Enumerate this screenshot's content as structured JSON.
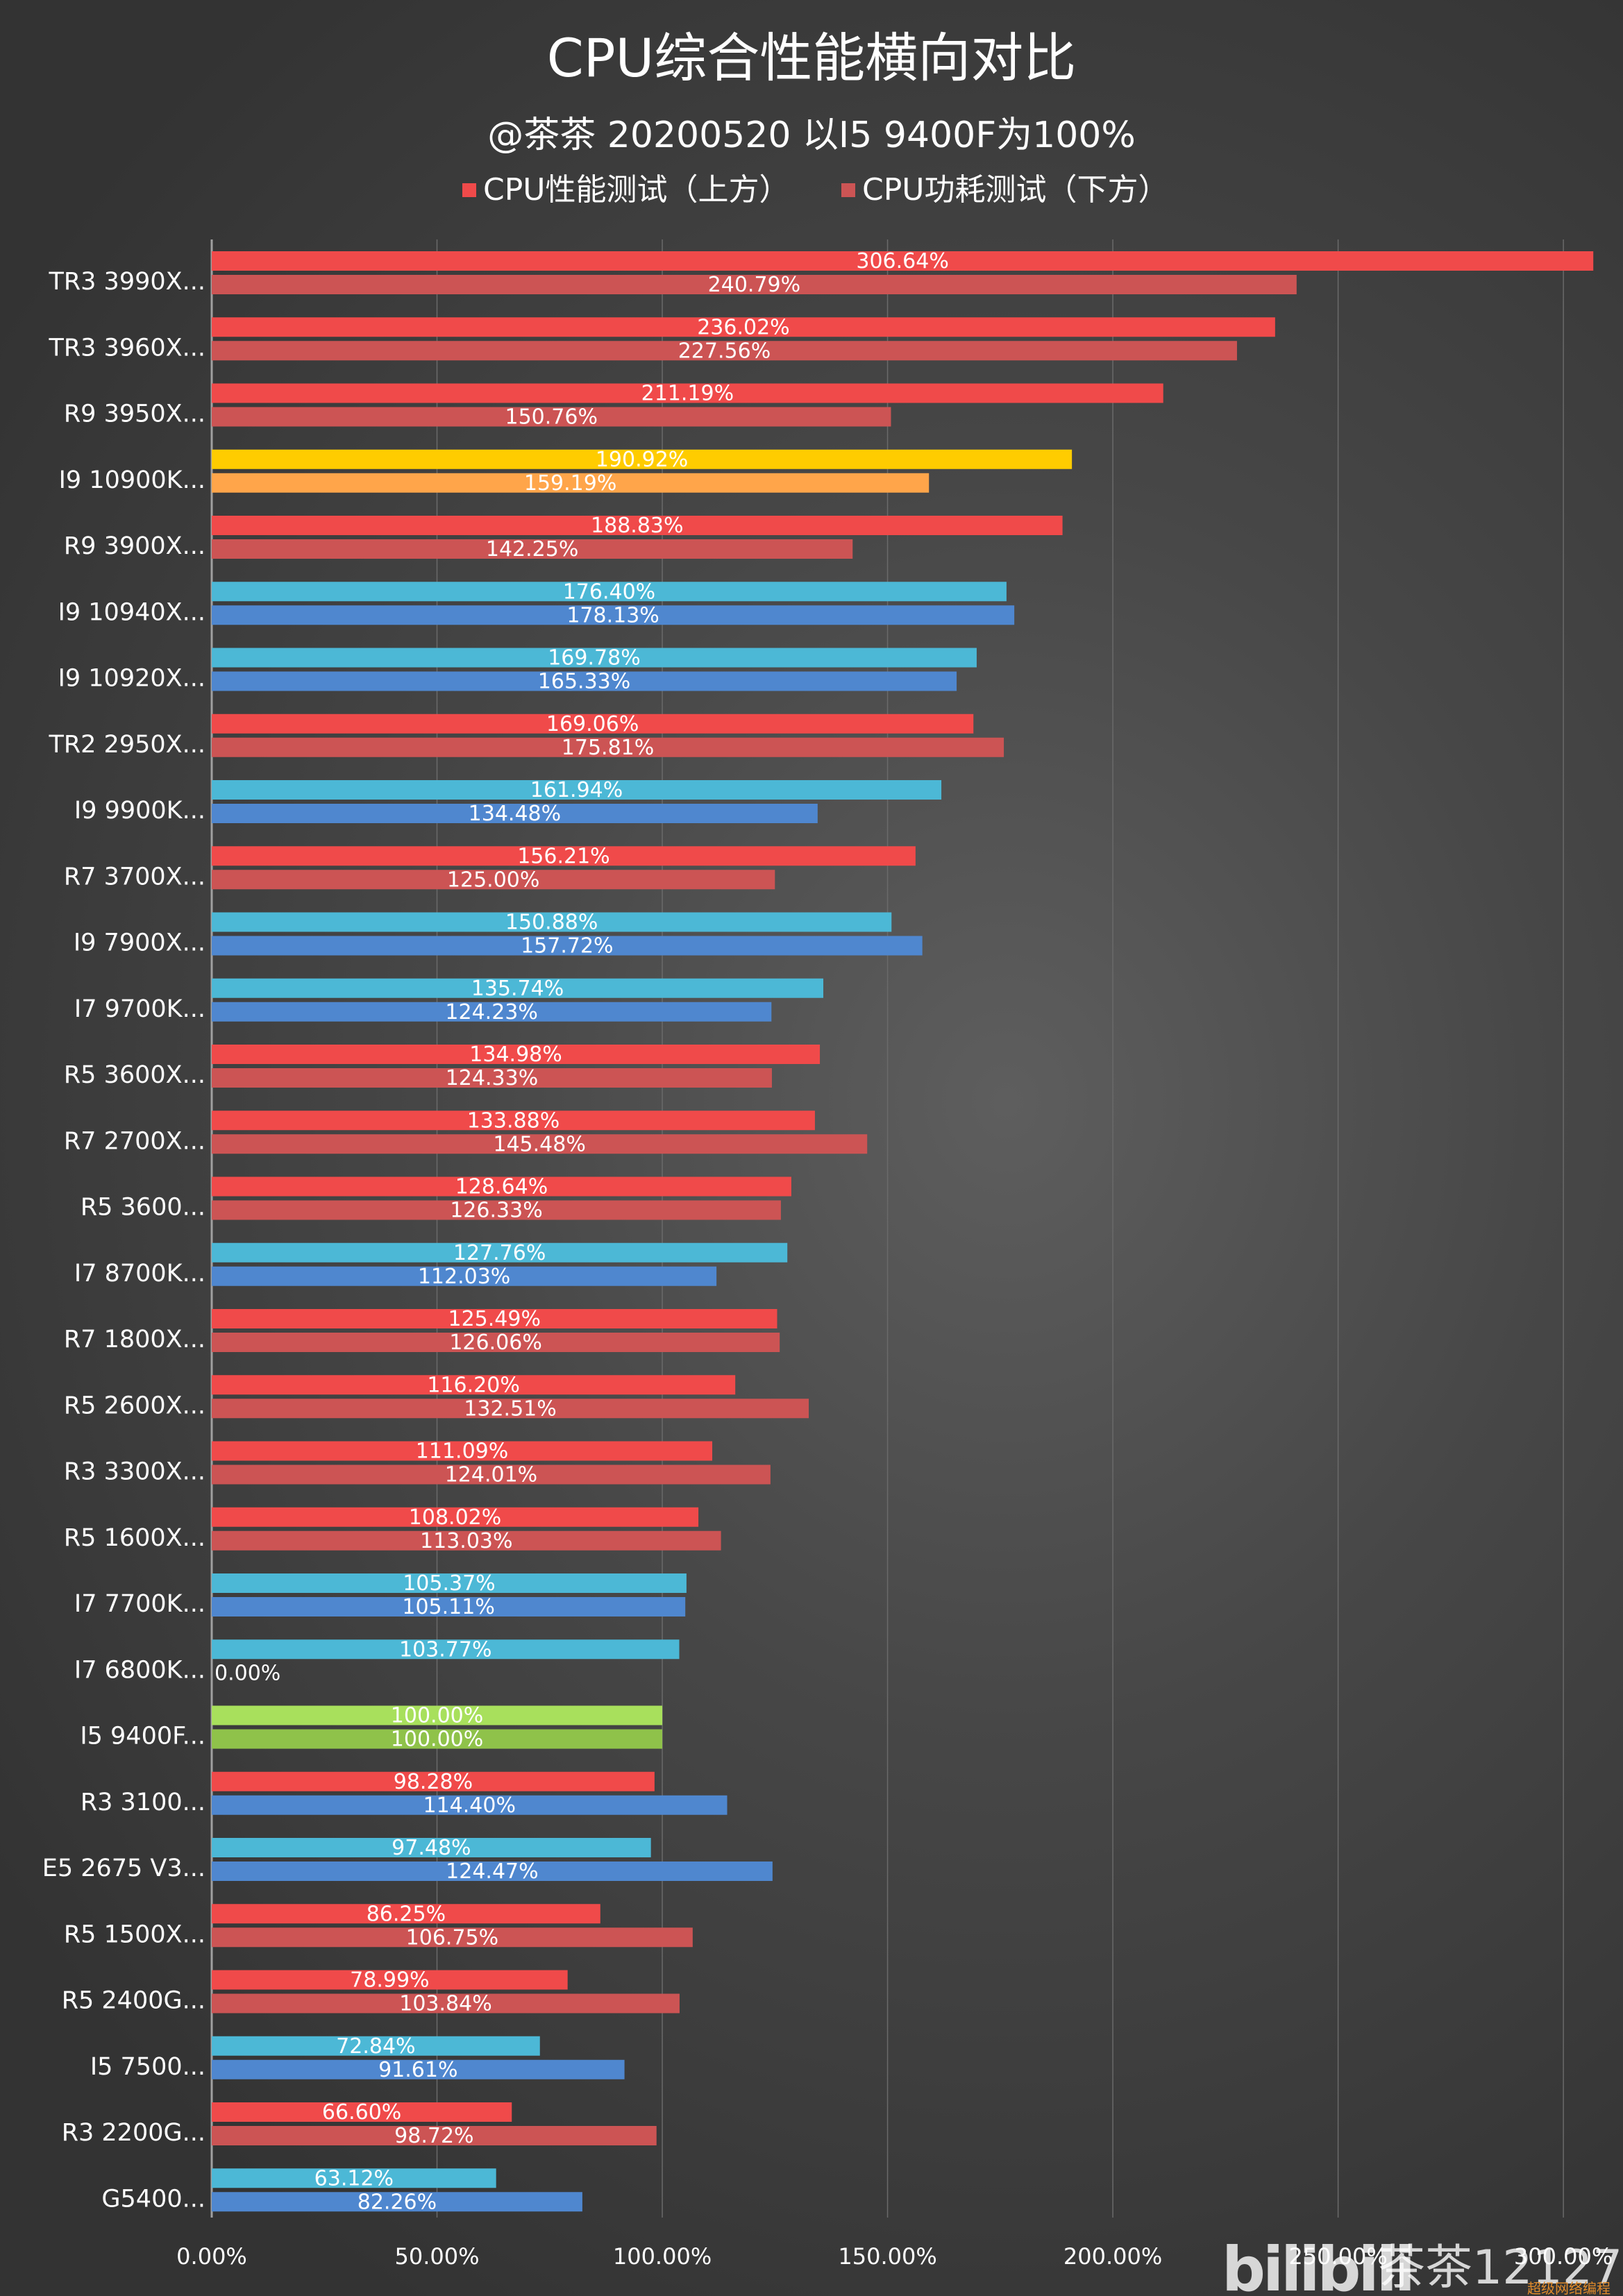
{
  "chart_data": {
    "type": "bar",
    "orientation": "horizontal",
    "title": "CPU综合性能横向对比",
    "subtitle": "@茶茶 20200520 以I5 9400F为100%",
    "legend": [
      {
        "name": "CPU性能测试（上方）",
        "color": "#f04a4a"
      },
      {
        "name": "CPU功耗测试（下方）",
        "color": "#cc5454"
      }
    ],
    "xlim": [
      0,
      312
    ],
    "xticks": [
      0,
      50,
      100,
      150,
      200,
      250,
      300
    ],
    "xtick_labels": [
      "0.00%",
      "50.00%",
      "100.00%",
      "150.00%",
      "200.00%",
      "250.00%",
      "300.00%"
    ],
    "categories": [
      "TR3 3990X...",
      "TR3 3960X...",
      "R9 3950X...",
      "I9 10900K...",
      "R9 3900X...",
      "I9 10940X...",
      "I9 10920X...",
      "TR2 2950X...",
      "I9 9900K...",
      "R7 3700X...",
      "I9 7900X...",
      "I7 9700K...",
      "R5 3600X...",
      "R7 2700X...",
      "R5 3600...",
      "I7 8700K...",
      "R7 1800X...",
      "R5 2600X...",
      "R3 3300X...",
      "R5 1600X...",
      "I7 7700K...",
      "I7 6800K...",
      "I5 9400F...",
      "R3 3100...",
      "E5 2675 V3...",
      "R5 1500X...",
      "R5 2400G...",
      "I5 7500...",
      "R3 2200G...",
      "G5400..."
    ],
    "brand": [
      "amd",
      "amd",
      "amd",
      "highlight",
      "amd",
      "intel",
      "intel",
      "amd",
      "intel",
      "amd",
      "intel",
      "intel",
      "amd",
      "amd",
      "amd",
      "intel",
      "amd",
      "amd",
      "amd",
      "amd",
      "intel",
      "intel",
      "baseline",
      "mixed",
      "intel",
      "amd",
      "amd",
      "intel",
      "amd",
      "intel"
    ],
    "series": [
      {
        "name": "CPU性能测试（上方）",
        "values": [
          306.64,
          236.02,
          211.19,
          190.92,
          188.83,
          176.4,
          169.78,
          169.06,
          161.94,
          156.21,
          150.88,
          135.74,
          134.98,
          133.88,
          128.64,
          127.76,
          125.49,
          116.2,
          111.09,
          108.02,
          105.37,
          103.77,
          100.0,
          98.28,
          97.48,
          86.25,
          78.99,
          72.84,
          66.6,
          63.12
        ],
        "labels": [
          "306.64%",
          "236.02%",
          "211.19%",
          "190.92%",
          "188.83%",
          "176.40%",
          "169.78%",
          "169.06%",
          "161.94%",
          "156.21%",
          "150.88%",
          "135.74%",
          "134.98%",
          "133.88%",
          "128.64%",
          "127.76%",
          "125.49%",
          "116.20%",
          "111.09%",
          "108.02%",
          "105.37%",
          "103.77%",
          "100.00%",
          "98.28%",
          "97.48%",
          "86.25%",
          "78.99%",
          "72.84%",
          "66.60%",
          "63.12%"
        ]
      },
      {
        "name": "CPU功耗测试（下方）",
        "values": [
          240.79,
          227.56,
          150.76,
          159.19,
          142.25,
          178.13,
          165.33,
          175.81,
          134.48,
          125.0,
          157.72,
          124.23,
          124.33,
          145.48,
          126.33,
          112.03,
          126.06,
          132.51,
          124.01,
          113.03,
          105.11,
          0.0,
          100.0,
          114.4,
          124.47,
          106.75,
          103.84,
          91.61,
          98.72,
          82.26
        ],
        "labels": [
          "240.79%",
          "227.56%",
          "150.76%",
          "159.19%",
          "142.25%",
          "178.13%",
          "165.33%",
          "175.81%",
          "134.48%",
          "125.00%",
          "157.72%",
          "124.23%",
          "124.33%",
          "145.48%",
          "126.33%",
          "112.03%",
          "126.06%",
          "132.51%",
          "124.01%",
          "113.03%",
          "105.11%",
          "0.00%",
          "100.00%",
          "114.40%",
          "124.47%",
          "106.75%",
          "103.84%",
          "91.61%",
          "98.72%",
          "82.26%"
        ]
      }
    ],
    "colors": {
      "amd_perf": "#f04a4a",
      "amd_power": "#cc5454",
      "intel_perf": "#4cb8d6",
      "intel_power": "#4f87cf",
      "highlight_perf": "#ffcc00",
      "highlight_power": "#ffa54a",
      "baseline_perf": "#a8e05c",
      "baseline_power": "#8fc24a"
    }
  },
  "watermark": {
    "logo": "bilibili",
    "text": "茶茶12127",
    "sub": "超级网络编程"
  }
}
